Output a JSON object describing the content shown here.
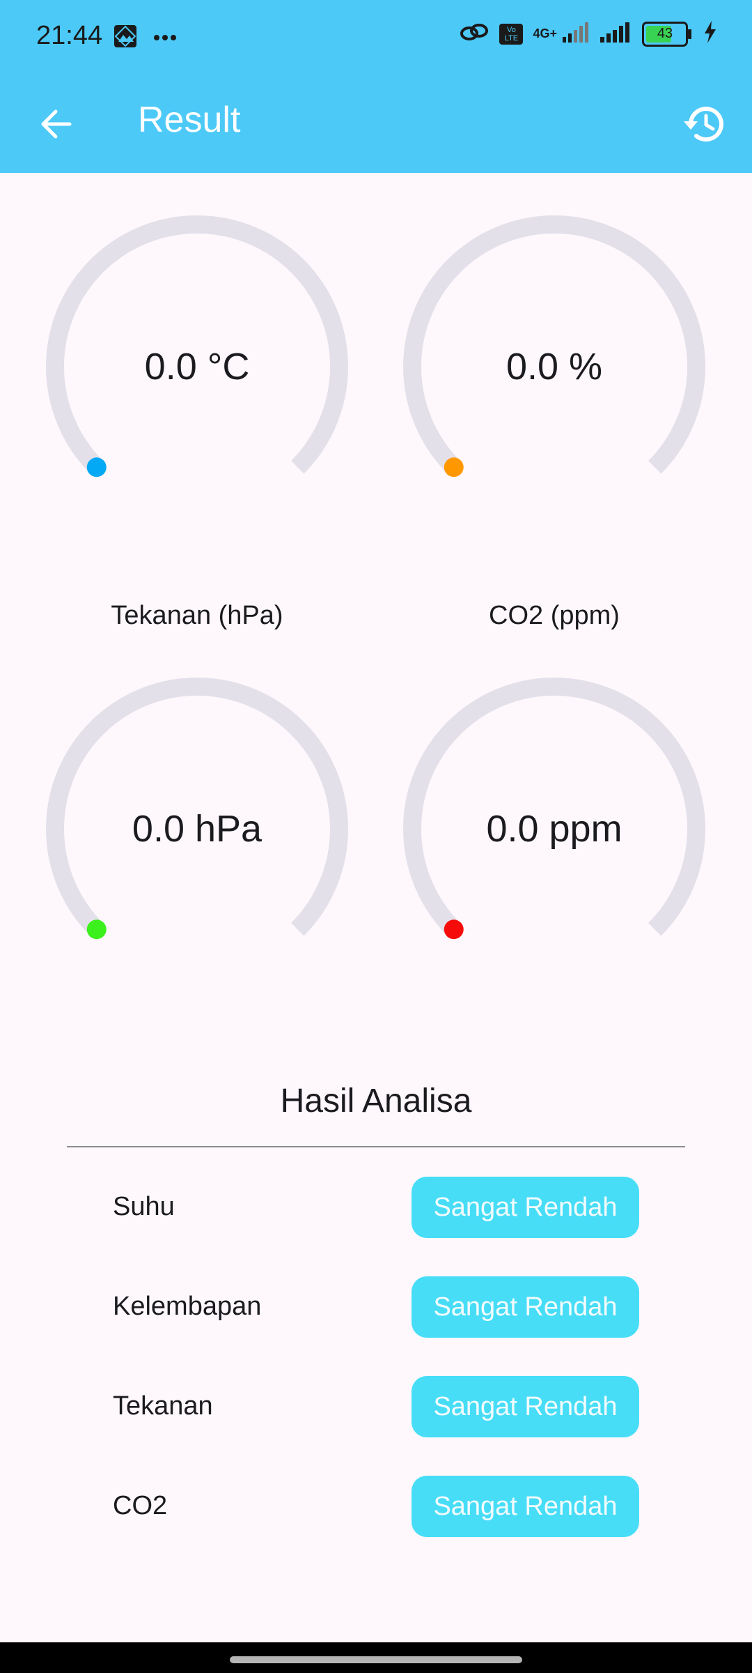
{
  "status_bar": {
    "time": "21:44",
    "network_text": "4G+",
    "volte_text": "Vo LTE",
    "battery_level": "43",
    "icons": [
      "gallery-icon",
      "more-dots-icon",
      "link-icon",
      "signal-icon",
      "battery-icon",
      "charging-icon"
    ]
  },
  "app_bar": {
    "title": "Result",
    "back_icon": "arrow-left-icon",
    "history_icon": "history-icon",
    "background": "#4CC9F7"
  },
  "gauges": [
    {
      "value_text": "0.0 °C",
      "label": "",
      "indicator_color": "#03A9F4",
      "value": 0.0
    },
    {
      "value_text": "0.0 %",
      "label": "",
      "indicator_color": "#FF9800",
      "value": 0.0
    },
    {
      "value_text": "0.0 hPa",
      "label": "Tekanan (hPa)",
      "indicator_color": "#3CF01E",
      "value": 0.0
    },
    {
      "value_text": "0.0 ppm",
      "label": "CO2 (ppm)",
      "indicator_color": "#F60B0B",
      "value": 0.0
    }
  ],
  "analysis": {
    "title": "Hasil Analisa",
    "rows": [
      {
        "label": "Suhu",
        "status": "Sangat Rendah"
      },
      {
        "label": "Kelembapan",
        "status": "Sangat Rendah"
      },
      {
        "label": "Tekanan",
        "status": "Sangat Rendah"
      },
      {
        "label": "CO2",
        "status": "Sangat Rendah"
      }
    ],
    "pill_color": "#47DDF7"
  }
}
